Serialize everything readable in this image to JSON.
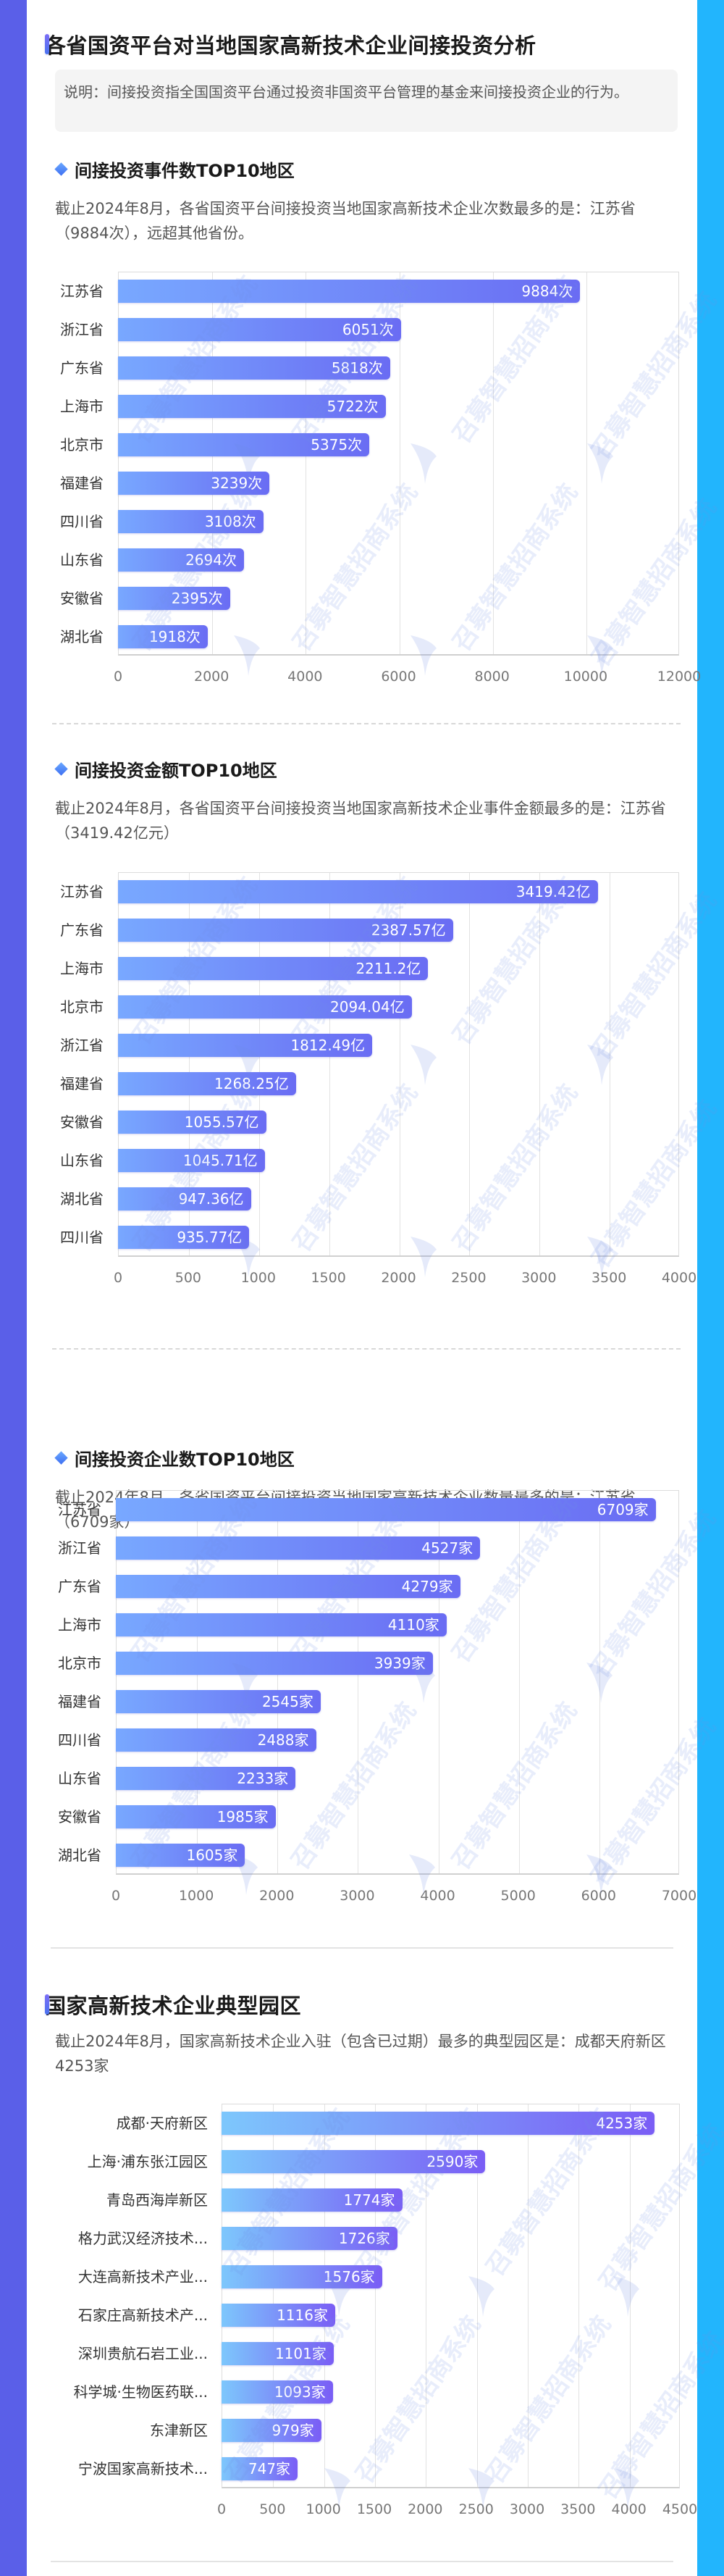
{
  "colors": {
    "left_border": "#5a5fe8",
    "right_border": "#22b5fd",
    "bar_gradient_start": "#78a8ff",
    "bar_gradient_end": "#6a6cf3",
    "park_bar_gradient_start": "#7dc7fc",
    "park_bar_gradient_end": "#7a5df5"
  },
  "watermark": "召募智慧招商系统",
  "section1": {
    "title": "各省国资平台对当地国家高新技术企业间接投资分析",
    "note": "说明：间接投资指全国国资平台通过投资非国资平台管理的基金来间接投资企业的行为。",
    "blocks": [
      {
        "heading": "间接投资事件数TOP10地区",
        "desc": "截止2024年8月，各省国资平台间接投资当地国家高新技术企业次数最多的是：江苏省（9884次），远超其他省份。"
      },
      {
        "heading": "间接投资金额TOP10地区",
        "desc": "截止2024年8月，各省国资平台间接投资当地国家高新技术企业事件金额最多的是：江苏省（3419.42亿元）"
      },
      {
        "heading": "间接投资企业数TOP10地区",
        "desc": "截止2024年8月，各省国资平台间接投资当地国家高新技术企业数量最多的是：江苏省（6709家）"
      }
    ]
  },
  "section2": {
    "title": "国家高新技术企业典型园区",
    "desc": "截止2024年8月，国家高新技术企业入驻（包含已过期）最多的典型园区是：成都天府新区4253家"
  },
  "chart_data": [
    {
      "type": "bar",
      "orientation": "horizontal",
      "title": "间接投资事件数TOP10地区",
      "categories": [
        "江苏省",
        "浙江省",
        "广东省",
        "上海市",
        "北京市",
        "福建省",
        "四川省",
        "山东省",
        "安徽省",
        "湖北省"
      ],
      "values": [
        9884,
        6051,
        5818,
        5722,
        5375,
        3239,
        3108,
        2694,
        2395,
        1918
      ],
      "labels": [
        "9884次",
        "6051次",
        "5818次",
        "5722次",
        "5375次",
        "3239次",
        "3108次",
        "2694次",
        "2395次",
        "1918次"
      ],
      "unit": "次",
      "xlim": [
        0,
        12000
      ],
      "ticks": [
        "0",
        "2000",
        "4000",
        "6000",
        "8000",
        "10000",
        "12000"
      ],
      "grid": true
    },
    {
      "type": "bar",
      "orientation": "horizontal",
      "title": "间接投资金额TOP10地区",
      "categories": [
        "江苏省",
        "广东省",
        "上海市",
        "北京市",
        "浙江省",
        "福建省",
        "安徽省",
        "山东省",
        "湖北省",
        "四川省"
      ],
      "values": [
        3419.42,
        2387.57,
        2211.2,
        2094.04,
        1812.49,
        1268.25,
        1055.57,
        1045.71,
        947.36,
        935.77
      ],
      "labels": [
        "3419.42亿",
        "2387.57亿",
        "2211.2亿",
        "2094.04亿",
        "1812.49亿",
        "1268.25亿",
        "1055.57亿",
        "1045.71亿",
        "947.36亿",
        "935.77亿"
      ],
      "unit": "亿",
      "xlim": [
        0,
        4000
      ],
      "ticks": [
        "0",
        "500",
        "1000",
        "1500",
        "2000",
        "2500",
        "3000",
        "3500",
        "4000"
      ],
      "grid": true
    },
    {
      "type": "bar",
      "orientation": "horizontal",
      "title": "间接投资企业数TOP10地区",
      "categories": [
        "江苏省",
        "浙江省",
        "广东省",
        "上海市",
        "北京市",
        "福建省",
        "四川省",
        "山东省",
        "安徽省",
        "湖北省"
      ],
      "values": [
        6709,
        4527,
        4279,
        4110,
        3939,
        2545,
        2488,
        2233,
        1985,
        1605
      ],
      "labels": [
        "6709家",
        "4527家",
        "4279家",
        "4110家",
        "3939家",
        "2545家",
        "2488家",
        "2233家",
        "1985家",
        "1605家"
      ],
      "unit": "家",
      "xlim": [
        0,
        7000
      ],
      "ticks": [
        "0",
        "1000",
        "2000",
        "3000",
        "4000",
        "5000",
        "6000",
        "7000"
      ],
      "grid": true
    },
    {
      "type": "bar",
      "orientation": "horizontal",
      "title": "国家高新技术企业典型园区",
      "categories": [
        "成都·天府新区",
        "上海·浦东张江园区",
        "青岛西海岸新区",
        "格力武汉经济技术...",
        "大连高新技术产业...",
        "石家庄高新技术产...",
        "深圳贵航石岩工业...",
        "科学城·生物医药联...",
        "东津新区",
        "宁波国家高新技术..."
      ],
      "values": [
        4253,
        2590,
        1774,
        1726,
        1576,
        1116,
        1101,
        1093,
        979,
        747
      ],
      "labels": [
        "4253家",
        "2590家",
        "1774家",
        "1726家",
        "1576家",
        "1116家",
        "1101家",
        "1093家",
        "979家",
        "747家"
      ],
      "unit": "家",
      "xlim": [
        0,
        4500
      ],
      "ticks": [
        "0",
        "500",
        "1000",
        "1500",
        "2000",
        "2500",
        "3000",
        "3500",
        "4000",
        "4500"
      ],
      "grid": true
    }
  ]
}
